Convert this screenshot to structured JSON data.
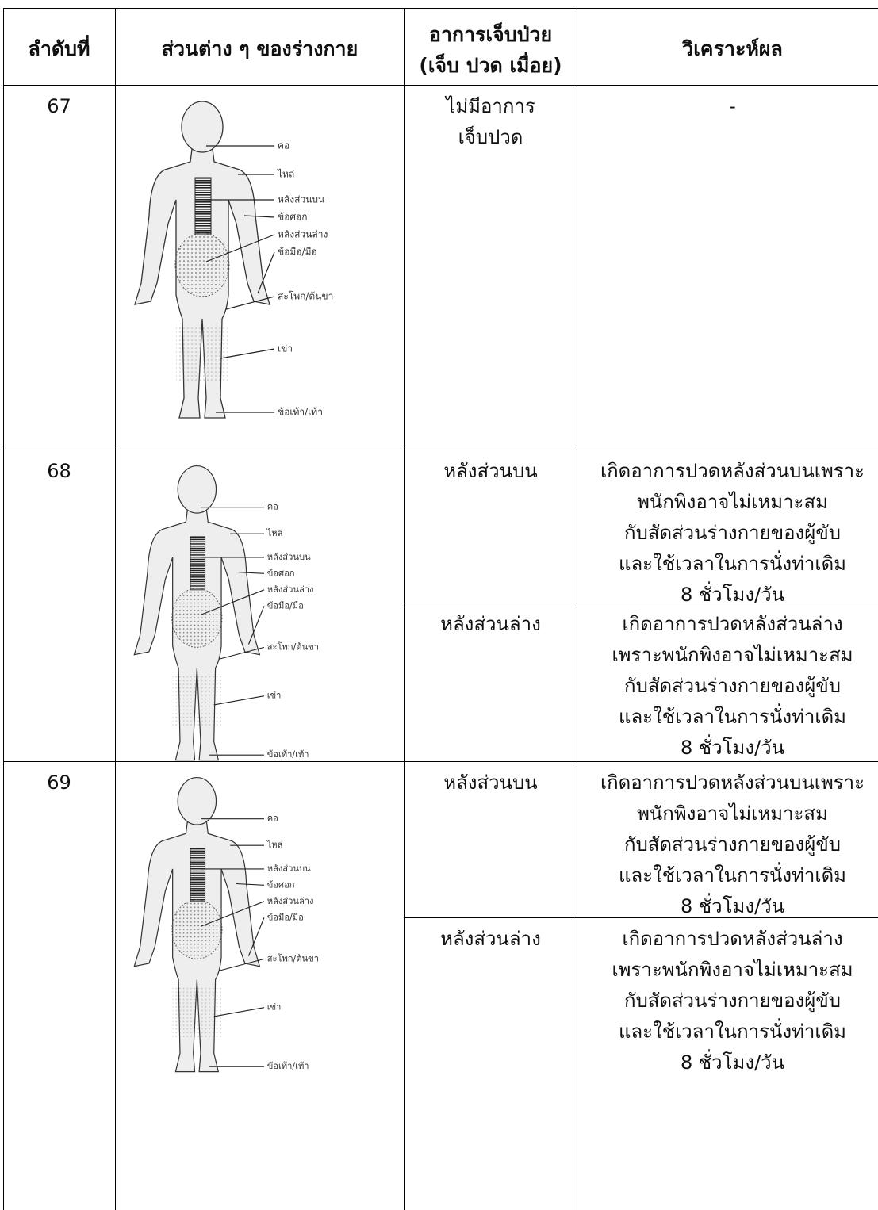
{
  "table": {
    "headers": [
      "ลำดับที่",
      "ส่วนต่าง ๆ ของร่างกาย",
      [
        "อาการเจ็บป่วย",
        "(เจ็บ ปวด เมื่อย)"
      ],
      "วิเคราะห์ผล"
    ],
    "rows": [
      {
        "no": "67",
        "symptoms": [
          {
            "text": [
              "ไม่มีอาการ",
              "เจ็บปวด"
            ],
            "analysis": [
              "-"
            ]
          }
        ]
      },
      {
        "no": "68",
        "symptoms": [
          {
            "text": [
              "หลังส่วนบน"
            ],
            "analysis": [
              "เกิดอาการปวดหลังส่วนบนเพราะ",
              "พนักพิงอาจไม่เหมาะสม",
              "กับสัดส่วนร่างกายของผู้ขับ",
              "และใช้เวลาในการนั่งท่าเดิม",
              "8 ชั่วโมง/วัน"
            ]
          },
          {
            "text": [
              "หลังส่วนล่าง"
            ],
            "analysis": [
              "เกิดอาการปวดหลังส่วนล่าง",
              "เพราะพนักพิงอาจไม่เหมาะสม",
              "กับสัดส่วนร่างกายของผู้ขับ",
              "และใช้เวลาในการนั่งท่าเดิม",
              "8 ชั่วโมง/วัน"
            ]
          }
        ]
      },
      {
        "no": "69",
        "symptoms": [
          {
            "text": [
              "หลังส่วนบน"
            ],
            "analysis": [
              "เกิดอาการปวดหลังส่วนบนเพราะ",
              "พนักพิงอาจไม่เหมาะสม",
              "กับสัดส่วนร่างกายของผู้ขับ",
              "และใช้เวลาในการนั่งท่าเดิม",
              "8 ชั่วโมง/วัน"
            ]
          },
          {
            "text": [
              "หลังส่วนล่าง"
            ],
            "analysis": [
              "เกิดอาการปวดหลังส่วนล่าง",
              "เพราะพนักพิงอาจไม่เหมาะสม",
              "กับสัดส่วนร่างกายของผู้ขับ",
              "และใช้เวลาในการนั่งท่าเดิม",
              "8 ชั่วโมง/วัน"
            ]
          }
        ]
      }
    ]
  },
  "diagram_labels": [
    "คอ",
    "ไหล่",
    "หลังส่วนบน",
    "ข้อศอก",
    "หลังส่วนล่าง",
    "ข้อมือ/มือ",
    "สะโพก/ต้นขา",
    "เข่า",
    "ข้อเท้า/เท้า"
  ]
}
